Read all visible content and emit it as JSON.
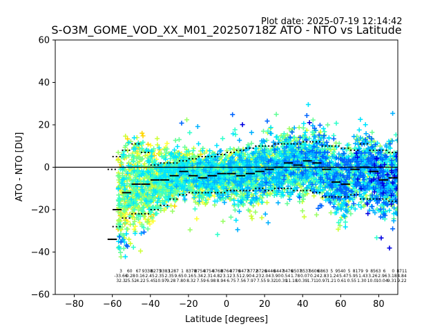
{
  "plot_date": "Plot date: 2025-07-19 12:14:42",
  "chart_data": {
    "type": "scatter",
    "title": "S-O3M_GOME_VOD_XX_M01_20250718Z ATO - NTO vs Latitude",
    "xlabel": "Latitude [degrees]",
    "ylabel": "ATO - NTO [DU]",
    "xlim": [
      -90,
      90
    ],
    "ylim": [
      -60,
      60
    ],
    "xticks": [
      -80,
      -60,
      -40,
      -20,
      0,
      20,
      40,
      60,
      80
    ],
    "yticks": [
      -60,
      -40,
      -20,
      0,
      20,
      40,
      60
    ],
    "xtick_labels": [
      "−80",
      "−60",
      "−40",
      "−20",
      "0",
      "20",
      "40",
      "60",
      "80"
    ],
    "ytick_labels": [
      "−60",
      "−40",
      "−20",
      "0",
      "20",
      "40",
      "60"
    ],
    "grid": false,
    "zero_line": 0,
    "colors": {
      "bins": [
        "#ffd700",
        "#ffff33",
        "#ccff33",
        "#99ff66",
        "#66ff99",
        "#33ffcc",
        "#00e5ff",
        "#00b0ff",
        "#0066ff",
        "#0000e0"
      ],
      "median": "#000000"
    },
    "series": [
      {
        "x": [
          -60,
          -57.5,
          -52.5,
          -47.5,
          -42.5,
          -37.5,
          -32.5,
          -27.5,
          -22.5,
          -17.5,
          -12.5,
          -7.5,
          -2.5,
          2.5,
          7.5,
          12.5,
          17.5,
          22.5,
          27.5,
          32.5,
          37.5,
          42.5,
          47.5,
          52.5,
          57.5,
          62.5,
          67.5,
          72.5,
          77.5,
          82.5,
          87.5
        ],
        "y": [
          -34,
          -20,
          -12,
          -8,
          -8,
          -6,
          -6,
          -4,
          -2,
          -4,
          -5,
          -4,
          -3,
          -3,
          -4,
          -3,
          -2,
          -1,
          0,
          2,
          1,
          3,
          2,
          -1,
          -7,
          -8,
          -1,
          0,
          -2,
          -6,
          -5
        ]
      }
    ],
    "spread_upper": [
      -1,
      5,
      8,
      11,
      7,
      1,
      2,
      2,
      3,
      4,
      5,
      5,
      6,
      7,
      8,
      9,
      10,
      10,
      11,
      11,
      11,
      12,
      12,
      10,
      10,
      9,
      8,
      11,
      8,
      8,
      7
    ],
    "spread_lower": [
      -34,
      -28,
      -24,
      -22,
      -22,
      -20,
      -18,
      -15,
      -13,
      -12,
      -12,
      -12,
      -12,
      -11,
      -11,
      -11,
      -10,
      -11,
      -10,
      -10,
      -11,
      -11,
      -12,
      -14,
      -14,
      -14,
      -13,
      -15,
      -15,
      -15,
      -16
    ],
    "bin_annotations": {
      "row1": [
        "3",
        "60",
        "67",
        "9338",
        "8273",
        "9383",
        "1287",
        "1",
        "8378",
        "8754",
        "8754",
        "8768",
        "8764",
        "8776",
        "8477",
        "8772",
        "8726",
        "8446",
        "8447",
        "8476",
        "8507",
        "8537",
        "6606",
        "6863",
        "5",
        "9540",
        "5",
        "8179",
        "9",
        "8563",
        "6",
        "0",
        "8711"
      ],
      "row2": [
        "-33.66",
        "0.28",
        "0.16",
        "2.45",
        "2.35",
        "2.35",
        "9.65",
        "0.16",
        "5.34",
        "2.31",
        "4.82",
        "3.12",
        "3.51",
        "2.90",
        "4.23",
        "2.04",
        "3.90",
        "0.54",
        "1.78",
        "0.07",
        "0.24",
        "2.83",
        "1.24",
        "5.47",
        "5.95",
        "1.43",
        "3.26",
        "2.96",
        "3.18",
        "4.84"
      ],
      "row3": [
        "32.3",
        "25.52",
        "4.22",
        "5.45",
        "10.97",
        "9.28",
        "7.80",
        "8.32",
        "7.59",
        "6.98",
        "8.94",
        "6.75",
        "7.56",
        "7.97",
        "7.55",
        "9.32",
        "10.39",
        "11.18",
        "10.39",
        "1.71",
        "10.97",
        "1.21",
        "0.61",
        "0.55",
        "1.30",
        "10.0",
        "10.04",
        "9.31",
        "9.22"
      ]
    }
  }
}
